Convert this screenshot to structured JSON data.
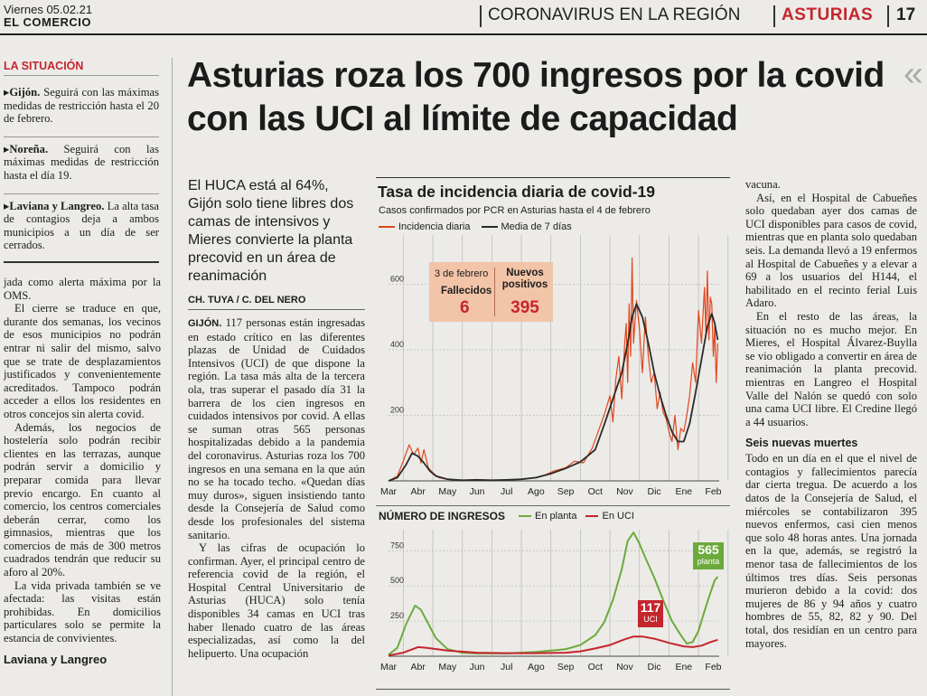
{
  "header": {
    "date": "Viernes 05.02.21",
    "paper": "EL COMERCIO",
    "section": "CORONAVIRUS EN LA REGIÓN",
    "region": "ASTURIAS",
    "page": "17"
  },
  "sidebar": {
    "title": "LA SITUACIÓN",
    "items": [
      {
        "place": "Gijón.",
        "text": "Seguirá con las máximas medidas de restricción hasta el 20 de febrero."
      },
      {
        "place": "Noreña.",
        "text": "Seguirá con las máximas medidas de restricción hasta el día 19."
      },
      {
        "place": "Laviana y Langreo.",
        "text": "La alta tasa de contagios deja a ambos municipios a un día de ser cerrados."
      }
    ]
  },
  "col1": {
    "paragraphs": [
      "jada como alerta máxima por la OMS.",
      "El cierre se traduce en que, durante dos semanas, los vecinos de esos municipios no podrán entrar ni salir del mismo, salvo que se trate de desplazamientos justificados y convenientemente acreditados. Tampoco podrán acceder a ellos los residentes en otros concejos sin alerta covid.",
      "Además, los negocios de hostelería solo podrán recibir clientes en las terrazas, aunque podrán servir a domicilio y preparar comida para llevar previo encargo. En cuanto al comercio, los centros comerciales deberán cerrar, como los gimnasios, mientras que los comercios de más de 300 metros cuadrados tendrán que reducir su aforo al 20%.",
      "La vida privada también se ve afectada: las visitas están prohibidas. En domicilios particulares solo se permite la estancia de convivientes."
    ],
    "subhead": "Laviana y Langreo"
  },
  "headline": "Asturias roza los 700 ingresos por la covid con las UCI al límite de capacidad",
  "standfirst": "El HUCA está al 64%, Gijón solo tiene libres dos camas de intensivos y Mieres convierte la planta precovid en un área de reanimación",
  "byline": "CH. TUYA / C. DEL NERO",
  "col2": {
    "dateline": "GIJÓN.",
    "paragraphs": [
      "117 personas están ingresadas en estado crítico en las diferentes plazas de Unidad de Cuidados Intensivos (UCI) de que dispone la región. La tasa más alta de la tercera ola, tras superar el pasado día 31 la barrera de los cien ingresos en cuidados intensivos por covid. A ellas se suman otras 565 personas hospitalizadas debido a la pandemia del coronavirus. Asturias roza los 700 ingresos en una semana en la que aún no se ha tocado techo. «Quedan días muy duros», siguen insistiendo tanto desde la Consejería de Salud como desde los profesionales del sistema sanitario.",
      "Y las cifras de ocupación lo confirman. Ayer, el principal centro de referencia covid de la región, el Hospital Central Universitario de Asturias (HUCA) solo tenía disponibles 34 camas en UCI tras haber llenado cuatro de las áreas especializadas, así como la del helipuerto. Una ocupación"
    ]
  },
  "col4": {
    "paragraphs": [
      "vacuna.",
      "Así, en el Hospital de Cabueñes solo quedaban ayer dos camas de UCI disponibles para casos de covid, mientras que en planta solo quedaban seis. La demanda llevó a 19 enfermos al Hospital de Cabueñes y a elevar a 69 a los usuarios del H144, el habilitado en el recinto ferial Luis Adaro.",
      "En el resto de las áreas, la situación no es mucho mejor. En Mieres, el Hospital Álvarez-Buylla se vio obligado a convertir en área de reanimación la planta precovid. mientras en Langreo el Hospital Valle del Nalón se quedó con solo una cama UCI libre. El Credine llegó a 44 usuarios."
    ],
    "subhead": "Seis nuevas muertes",
    "paragraphs2": [
      "Todo en un día en el que el nivel de contagios y fallecimientos parecía dar cierta tregua. De acuerdo a los datos de la Consejería de Salud, el miércoles se contabilizaron 395 nuevos enfermos, casi cien menos que solo 48 horas antes. Una jornada en la que, además, se registró la menor tasa de fallecimientos de los últimos tres días. Seis personas murieron debido a la covid: dos mujeres de 86 y 94 años y cuatro hombres de 55, 82, 82 y 90. Del total, dos residían en un centro para mayores."
    ]
  },
  "colors": {
    "red": "#c4262e",
    "orange": "#e0471f",
    "green": "#6caa3c",
    "dark": "#2a2a2a",
    "box": "#f2c4a8"
  },
  "chart_data": [
    {
      "type": "line",
      "title": "Tasa de incidencia diaria de covid-19",
      "subtitle": "Casos confirmados por PCR en Asturias hasta el 4 de febrero",
      "xlabel": "",
      "ylabel": "",
      "categories": [
        "Mar",
        "Abr",
        "May",
        "Jun",
        "Jul",
        "Ago",
        "Sep",
        "Oct",
        "Nov",
        "Dic",
        "Ene",
        "Feb"
      ],
      "x_range": [
        0,
        11.2
      ],
      "ylim": [
        0,
        750
      ],
      "yticks": [
        200,
        400,
        600
      ],
      "grid": true,
      "legend": "top-left",
      "series": [
        {
          "name": "Incidencia diaria",
          "color": "#e0471f",
          "x": [
            0,
            0.3,
            0.5,
            0.7,
            0.85,
            1.0,
            1.1,
            1.2,
            1.35,
            1.5,
            1.7,
            2,
            2.5,
            3,
            3.5,
            4,
            4.5,
            5,
            5.3,
            5.6,
            6,
            6.3,
            6.6,
            6.9,
            7.1,
            7.3,
            7.5,
            7.6,
            7.7,
            7.8,
            7.9,
            8.0,
            8.05,
            8.1,
            8.15,
            8.2,
            8.25,
            8.3,
            8.4,
            8.5,
            8.6,
            8.7,
            8.8,
            8.9,
            9.0,
            9.1,
            9.2,
            9.3,
            9.4,
            9.5,
            9.6,
            9.7,
            9.8,
            9.9,
            10.0,
            10.1,
            10.2,
            10.3,
            10.4,
            10.5,
            10.6,
            10.7,
            10.75,
            10.8,
            10.85,
            10.9,
            10.95,
            11.0,
            11.05,
            11.1,
            11.15
          ],
          "values": [
            0,
            15,
            60,
            110,
            80,
            100,
            55,
            95,
            40,
            25,
            10,
            5,
            2,
            4,
            2,
            3,
            5,
            10,
            18,
            30,
            40,
            60,
            55,
            100,
            150,
            200,
            260,
            180,
            310,
            380,
            250,
            420,
            480,
            300,
            540,
            380,
            680,
            420,
            550,
            460,
            330,
            500,
            380,
            300,
            330,
            220,
            270,
            210,
            190,
            150,
            120,
            200,
            95,
            160,
            150,
            200,
            260,
            360,
            300,
            520,
            420,
            590,
            450,
            640,
            430,
            560,
            540,
            380,
            470,
            300,
            420
          ]
        },
        {
          "name": "Media de 7 días",
          "color": "#2a2a2a",
          "x": [
            0,
            0.3,
            0.6,
            0.8,
            1.0,
            1.2,
            1.4,
            1.6,
            2,
            2.5,
            3,
            3.5,
            4,
            4.5,
            5,
            5.5,
            6,
            6.5,
            7,
            7.3,
            7.6,
            7.9,
            8.1,
            8.25,
            8.4,
            8.6,
            8.8,
            9.0,
            9.2,
            9.4,
            9.6,
            9.8,
            10.0,
            10.2,
            10.4,
            10.6,
            10.8,
            10.95,
            11.05,
            11.15
          ],
          "values": [
            0,
            10,
            50,
            85,
            75,
            55,
            30,
            15,
            5,
            2,
            3,
            2,
            3,
            5,
            10,
            22,
            38,
            58,
            95,
            170,
            250,
            330,
            420,
            500,
            540,
            500,
            420,
            330,
            260,
            200,
            150,
            120,
            120,
            175,
            270,
            370,
            470,
            510,
            480,
            430
          ]
        }
      ],
      "annotation": {
        "date": "3 de febrero",
        "deaths_label": "Fallecidos",
        "deaths": "6",
        "cases_label": "Nuevos positivos",
        "cases": "395"
      }
    },
    {
      "type": "line",
      "title": "NÚMERO DE INGRESOS",
      "xlabel": "",
      "ylabel": "",
      "categories": [
        "Mar",
        "Abr",
        "May",
        "Jun",
        "Jul",
        "Ago",
        "Sep",
        "Oct",
        "Nov",
        "Dic",
        "Ene",
        "Feb"
      ],
      "x_range": [
        0,
        11.2
      ],
      "ylim": [
        0,
        900
      ],
      "yticks": [
        250,
        500,
        750
      ],
      "grid": true,
      "legend": "top",
      "series": [
        {
          "name": "En planta",
          "color": "#6caa3c",
          "x": [
            0,
            0.3,
            0.6,
            0.9,
            1.1,
            1.3,
            1.6,
            2.0,
            2.5,
            3,
            4,
            5,
            6,
            6.5,
            7,
            7.3,
            7.6,
            7.9,
            8.1,
            8.3,
            8.5,
            8.7,
            9,
            9.3,
            9.6,
            9.9,
            10.1,
            10.3,
            10.5,
            10.7,
            10.9,
            11.05,
            11.15
          ],
          "values": [
            10,
            60,
            230,
            360,
            330,
            250,
            130,
            50,
            25,
            20,
            20,
            30,
            50,
            80,
            150,
            240,
            400,
            620,
            820,
            880,
            800,
            700,
            560,
            400,
            250,
            150,
            90,
            100,
            180,
            320,
            450,
            540,
            565
          ]
        },
        {
          "name": "En UCI",
          "color": "#c4262e",
          "x": [
            0,
            0.5,
            1.0,
            1.3,
            2,
            3,
            4,
            5,
            6,
            6.5,
            7,
            7.5,
            8,
            8.3,
            8.6,
            9,
            9.5,
            10,
            10.3,
            10.6,
            10.9,
            11.15
          ],
          "values": [
            5,
            25,
            65,
            60,
            40,
            25,
            22,
            22,
            25,
            35,
            55,
            80,
            120,
            140,
            140,
            125,
            95,
            70,
            65,
            75,
            100,
            117
          ]
        }
      ],
      "labels": {
        "planta_value": "565",
        "planta_text": "planta",
        "uci_value": "117",
        "uci_text": "UCI"
      }
    }
  ]
}
